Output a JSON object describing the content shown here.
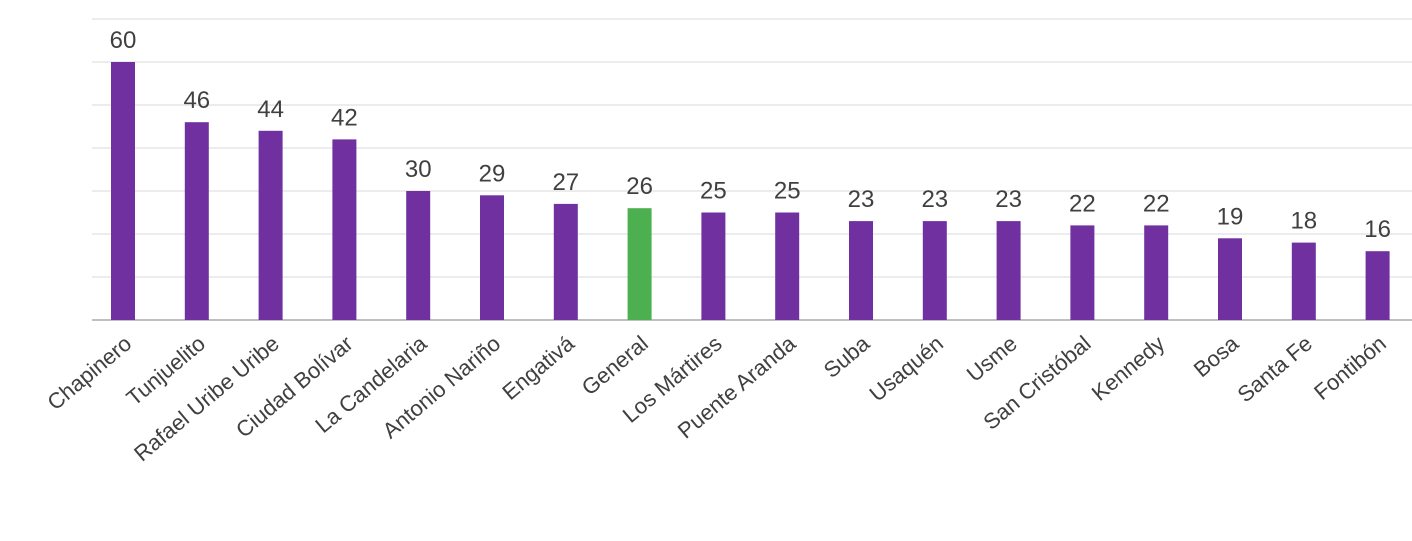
{
  "chart_data": {
    "type": "bar",
    "categories": [
      "Chapinero",
      "Tunjuelito",
      "Rafael Uribe Uribe",
      "Ciudad Bolívar",
      "La Candelaria",
      "Antonio Nariño",
      "Engativá",
      "General",
      "Los Mártires",
      "Puente Aranda",
      "Suba",
      "Usaquén",
      "Usme",
      "San Cristóbal",
      "Kennedy",
      "Bosa",
      "Santa Fe",
      "Fontibón"
    ],
    "values": [
      60,
      46,
      44,
      42,
      30,
      29,
      27,
      26,
      25,
      25,
      23,
      23,
      23,
      22,
      22,
      19,
      18,
      16
    ],
    "value_labels": [
      "60",
      "46",
      "44",
      "42",
      "30",
      "29",
      "27",
      "26",
      "25",
      "25",
      "23",
      "23",
      "23",
      "22",
      "22",
      "19",
      "18",
      "16"
    ],
    "title": "",
    "xlabel": "",
    "ylabel": "",
    "ylim": [
      0,
      70
    ],
    "grid": true,
    "legend": "none",
    "colors": {
      "bar": "#7030a0",
      "highlight": "#4caf50",
      "highlight_category": "General",
      "grid": "#d9d9d9",
      "axis": "#bfbfbf",
      "text": "#404040"
    }
  }
}
